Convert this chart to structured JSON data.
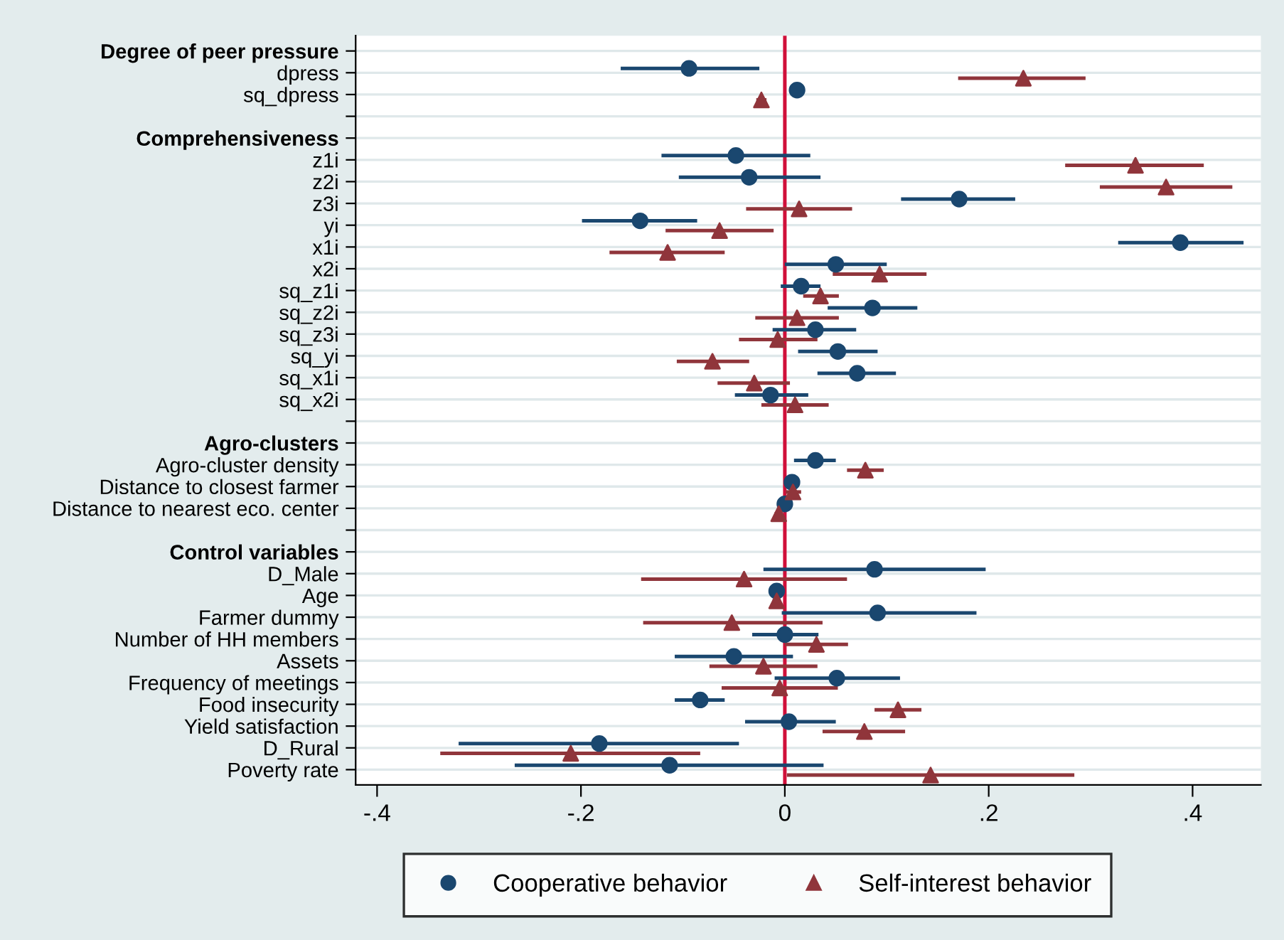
{
  "chart_data": {
    "type": "scatter",
    "orientation": "horizontal",
    "categories": [
      "Degree of peer pressure",
      "dpress",
      "sq_dpress",
      null,
      "Comprehensiveness",
      "z1i",
      "z2i",
      "z3i",
      "yi",
      "x1i",
      "x2i",
      "sq_z1i",
      "sq_z2i",
      "sq_z3i",
      "sq_yi",
      "sq_x1i",
      "sq_x2i",
      null,
      "Agro-clusters",
      "Agro-cluster density",
      "Distance to closest farmer",
      "Distance to nearest eco. center",
      null,
      "Control variables",
      "D_Male",
      "Age",
      "Farmer dummy",
      "Number of HH members",
      "Assets",
      "Frequency of meetings",
      "Food insecurity",
      "Yield satisfaction",
      "D_Rural",
      "Poverty rate"
    ],
    "series": [
      {
        "name": "Cooperative behavior",
        "color": "#1a476f",
        "marker": "circle",
        "values": [
          null,
          -0.094,
          0.012,
          null,
          null,
          -0.048,
          -0.035,
          0.171,
          -0.142,
          0.388,
          0.05,
          0.016,
          0.086,
          0.03,
          0.052,
          0.071,
          -0.014,
          null,
          null,
          0.03,
          0.007,
          0.0,
          null,
          null,
          0.088,
          -0.008,
          0.091,
          0.0,
          -0.05,
          0.051,
          -0.083,
          0.004,
          -0.182,
          -0.113
        ],
        "errors": [
          null,
          [
            -0.161,
            -0.025
          ],
          [
            0.005,
            0.019
          ],
          null,
          null,
          [
            -0.121,
            0.025
          ],
          [
            -0.104,
            0.035
          ],
          [
            0.114,
            0.226
          ],
          [
            -0.199,
            -0.086
          ],
          [
            0.327,
            0.45
          ],
          [
            0.0,
            0.1
          ],
          [
            -0.004,
            0.035
          ],
          [
            0.042,
            0.13
          ],
          [
            -0.012,
            0.07
          ],
          [
            0.013,
            0.091
          ],
          [
            0.032,
            0.109
          ],
          [
            -0.049,
            0.023
          ],
          null,
          null,
          [
            0.009,
            0.05
          ],
          [
            -0.001,
            0.014
          ],
          [
            -0.003,
            0.003
          ],
          null,
          null,
          [
            -0.021,
            0.197
          ],
          [
            -0.011,
            -0.005
          ],
          [
            -0.003,
            0.188
          ],
          [
            -0.032,
            0.033
          ],
          [
            -0.108,
            0.008
          ],
          [
            -0.01,
            0.113
          ],
          [
            -0.108,
            -0.059
          ],
          [
            -0.039,
            0.05
          ],
          [
            -0.32,
            -0.045
          ],
          [
            -0.265,
            0.038
          ]
        ]
      },
      {
        "name": "Self-interest behavior",
        "color": "#90353b",
        "marker": "triangle",
        "values": [
          null,
          0.234,
          -0.023,
          null,
          null,
          0.344,
          0.374,
          0.014,
          -0.064,
          -0.115,
          0.093,
          0.035,
          0.012,
          -0.007,
          -0.071,
          -0.03,
          0.01,
          null,
          null,
          0.079,
          0.008,
          -0.006,
          null,
          null,
          -0.04,
          -0.008,
          -0.052,
          0.031,
          -0.021,
          -0.005,
          0.111,
          0.078,
          -0.21,
          0.143
        ],
        "errors": [
          null,
          [
            0.17,
            0.295
          ],
          [
            -0.028,
            -0.018
          ],
          null,
          null,
          [
            0.275,
            0.411
          ],
          [
            0.309,
            0.439
          ],
          [
            -0.038,
            0.066
          ],
          [
            -0.117,
            -0.011
          ],
          [
            -0.172,
            -0.059
          ],
          [
            0.047,
            0.139
          ],
          [
            0.018,
            0.053
          ],
          [
            -0.029,
            0.053
          ],
          [
            -0.045,
            0.032
          ],
          [
            -0.106,
            -0.035
          ],
          [
            -0.066,
            0.005
          ],
          [
            -0.023,
            0.043
          ],
          null,
          null,
          [
            0.061,
            0.097
          ],
          [
            0.001,
            0.016
          ],
          [
            -0.01,
            -0.002
          ],
          null,
          null,
          [
            -0.141,
            0.061
          ],
          [
            -0.012,
            -0.004
          ],
          [
            -0.139,
            0.037
          ],
          [
            0.0,
            0.062
          ],
          [
            -0.074,
            0.032
          ],
          [
            -0.062,
            0.052
          ],
          [
            0.088,
            0.134
          ],
          [
            0.037,
            0.118
          ],
          [
            -0.338,
            -0.083
          ],
          [
            0.002,
            0.284
          ]
        ]
      }
    ],
    "xlim": [
      -0.421,
      0.467
    ],
    "xticks": [
      {
        "value": -0.4,
        "label": "-.4"
      },
      {
        "value": -0.2,
        "label": "-.2"
      },
      0,
      {
        "value": 0.2,
        "label": ".2"
      },
      {
        "value": 0.4,
        "label": ".4"
      }
    ],
    "ref_lines": [
      {
        "axis": "x",
        "value": 0,
        "color": "#d0103a",
        "line_style": "solid"
      }
    ],
    "grid": "y",
    "legend": "bottom"
  }
}
